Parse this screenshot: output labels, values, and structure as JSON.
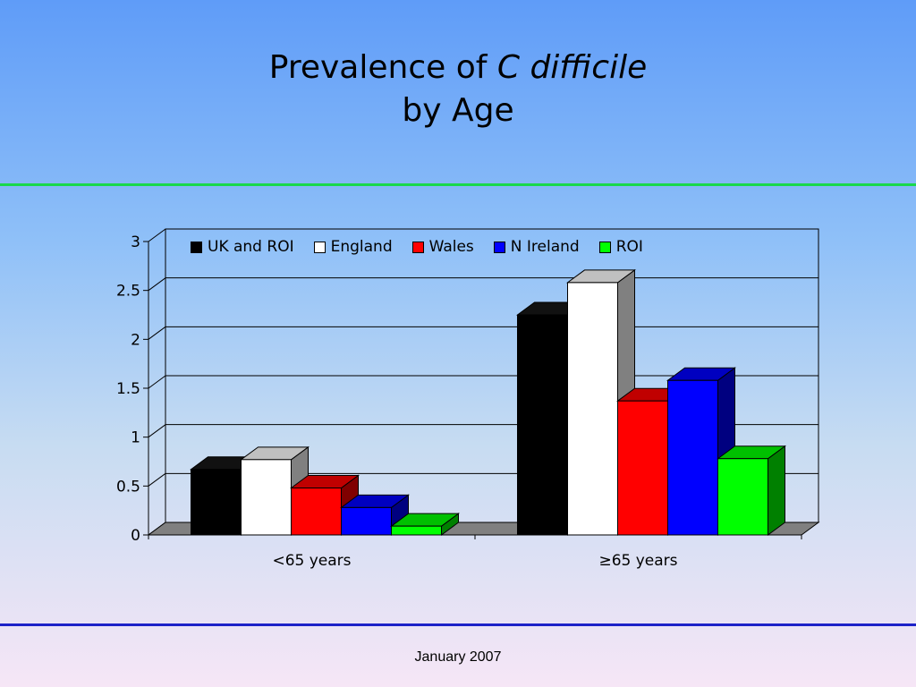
{
  "title_line1": "Prevalence of ",
  "title_italic": "C difficile",
  "title_line2": "by Age",
  "footer": "January 2007",
  "chart_data": {
    "type": "bar",
    "categories": [
      "<65 years",
      "≥65 years"
    ],
    "series": [
      {
        "name": "UK and ROI",
        "values": [
          0.67,
          2.25
        ],
        "color": "#000000",
        "side": "#000000",
        "top": "#111111"
      },
      {
        "name": "England",
        "values": [
          0.77,
          2.58
        ],
        "color": "#ffffff",
        "side": "#808080",
        "top": "#c0c0c0"
      },
      {
        "name": "Wales",
        "values": [
          0.48,
          1.37
        ],
        "color": "#ff0000",
        "side": "#800000",
        "top": "#c00000"
      },
      {
        "name": "N Ireland",
        "values": [
          0.28,
          1.58
        ],
        "color": "#0000ff",
        "side": "#000080",
        "top": "#0000c0"
      },
      {
        "name": "ROI",
        "values": [
          0.09,
          0.78
        ],
        "color": "#00ff00",
        "side": "#008000",
        "top": "#00c000"
      }
    ],
    "ylim": [
      0,
      3
    ],
    "yticks": [
      "0",
      "0.5",
      "1",
      "1.5",
      "2",
      "2.5",
      "3"
    ],
    "xlabel": "",
    "ylabel": "",
    "grid": true,
    "legend_position": "top"
  }
}
